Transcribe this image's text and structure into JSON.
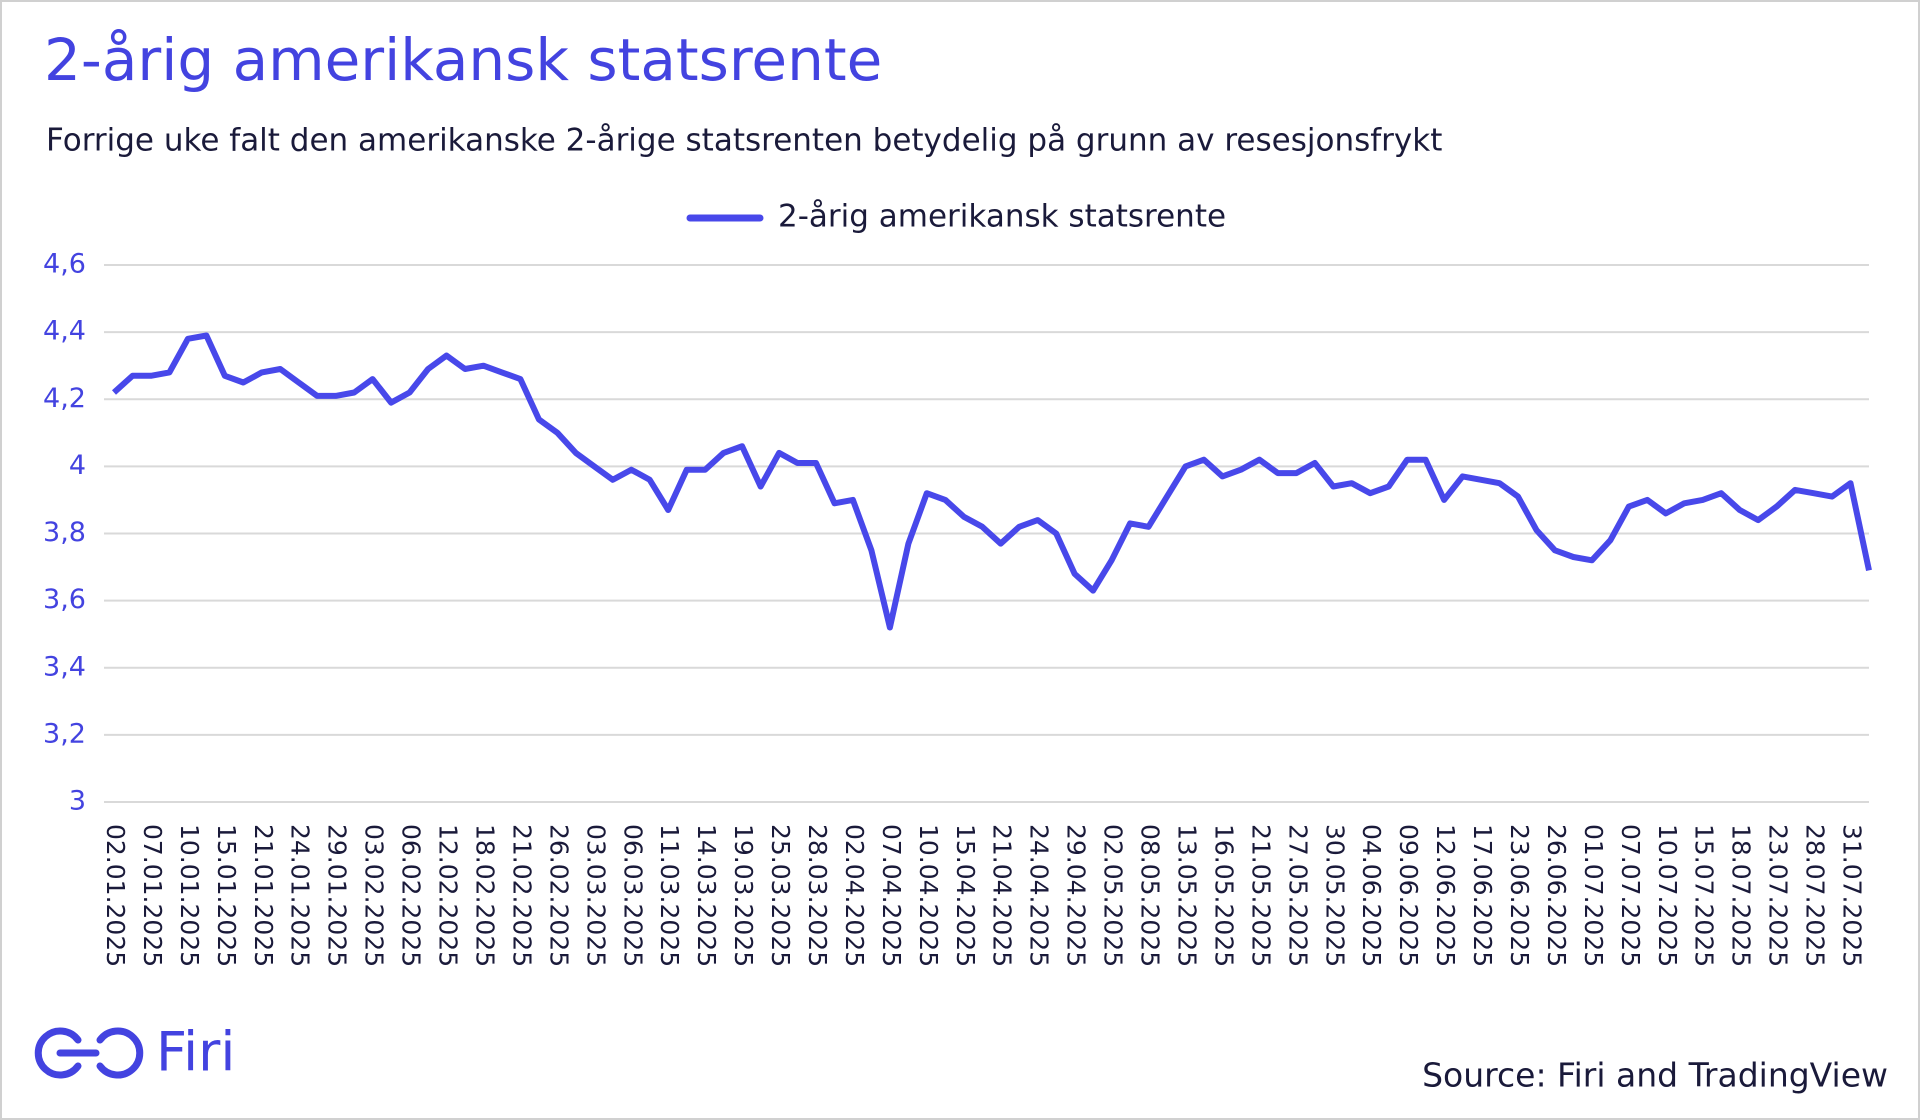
{
  "chart_data": {
    "type": "line",
    "title": "2-årig amerikansk statsrente",
    "subtitle": "Forrige uke falt den amerikanske 2-årige statsrenten betydelig på grunn av resesjonsfrykt",
    "categories": [
      "02.01.2025",
      null,
      "07.01.2025",
      null,
      "10.01.2025",
      null,
      "15.01.2025",
      null,
      "21.01.2025",
      null,
      "24.01.2025",
      null,
      "29.01.2025",
      null,
      "03.02.2025",
      null,
      "06.02.2025",
      null,
      "12.02.2025",
      null,
      "18.02.2025",
      null,
      "21.02.2025",
      null,
      "26.02.2025",
      null,
      "03.03.2025",
      null,
      "06.03.2025",
      null,
      "11.03.2025",
      null,
      "14.03.2025",
      null,
      "19.03.2025",
      null,
      "25.03.2025",
      null,
      "28.03.2025",
      null,
      "02.04.2025",
      null,
      "07.04.2025",
      null,
      "10.04.2025",
      null,
      "15.04.2025",
      null,
      "21.04.2025",
      null,
      "24.04.2025",
      null,
      "29.04.2025",
      null,
      "02.05.2025",
      null,
      "08.05.2025",
      null,
      "13.05.2025",
      null,
      "16.05.2025",
      null,
      "21.05.2025",
      null,
      "27.05.2025",
      null,
      "30.05.2025",
      null,
      "04.06.2025",
      null,
      "09.06.2025",
      null,
      "12.06.2025",
      null,
      "17.06.2025",
      null,
      "23.06.2025",
      null,
      "26.06.2025",
      null,
      "01.07.2025",
      null,
      "07.07.2025",
      null,
      "10.07.2025",
      null,
      "15.07.2025",
      null,
      "18.07.2025",
      null,
      "23.07.2025",
      null,
      "28.07.2025",
      null,
      "31.07.2025",
      null
    ],
    "series": [
      {
        "name": "2-årig amerikansk statsrente",
        "color": "#4848ea",
        "values": [
          4.22,
          4.27,
          4.27,
          4.28,
          4.38,
          4.39,
          4.27,
          4.25,
          4.28,
          4.29,
          4.25,
          4.21,
          4.21,
          4.22,
          4.26,
          4.19,
          4.22,
          4.29,
          4.33,
          4.29,
          4.3,
          4.28,
          4.26,
          4.14,
          4.1,
          4.04,
          4.0,
          3.96,
          3.99,
          3.96,
          3.87,
          3.99,
          3.99,
          4.04,
          4.06,
          3.94,
          4.04,
          4.01,
          4.01,
          3.89,
          3.9,
          3.75,
          3.52,
          3.77,
          3.92,
          3.9,
          3.85,
          3.82,
          3.77,
          3.82,
          3.84,
          3.8,
          3.68,
          3.63,
          3.72,
          3.83,
          3.82,
          3.91,
          4.0,
          4.02,
          3.97,
          3.99,
          4.02,
          3.98,
          3.98,
          4.01,
          3.94,
          3.95,
          3.92,
          3.94,
          4.02,
          4.02,
          3.9,
          3.97,
          3.96,
          3.95,
          3.91,
          3.81,
          3.75,
          3.73,
          3.72,
          3.78,
          3.88,
          3.9,
          3.86,
          3.89,
          3.9,
          3.92,
          3.87,
          3.84,
          3.88,
          3.93,
          3.92,
          3.91,
          3.95,
          3.69
        ]
      }
    ],
    "ylim": [
      3,
      4.6
    ],
    "yticks": [
      3,
      {
        "value": 3.2,
        "label": "3,2"
      },
      {
        "value": 3.4,
        "label": "3,4"
      },
      {
        "value": 3.6,
        "label": "3,6"
      },
      {
        "value": 3.8,
        "label": "3,8"
      },
      4,
      {
        "value": 4.2,
        "label": "4,2"
      },
      {
        "value": 4.4,
        "label": "4,4"
      },
      {
        "value": 4.6,
        "label": "4,6"
      }
    ],
    "grid": true,
    "legend": "top"
  },
  "logo": "Firi",
  "source": "Source: Firi and TradingView"
}
